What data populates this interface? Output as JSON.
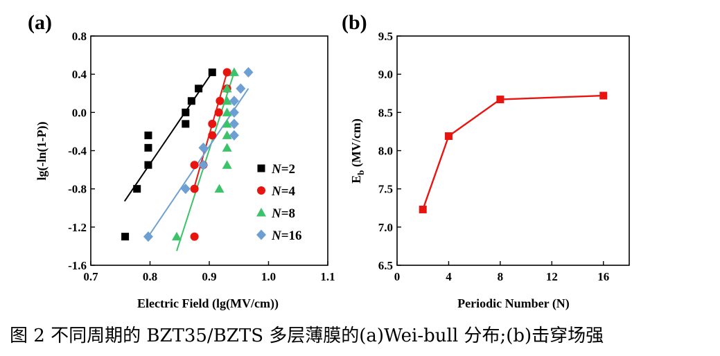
{
  "caption": "图 2 不同周期的 BZT35/BZTS 多层薄膜的(a)Wei-bull 分布;(b)击穿场强",
  "chart_data": [
    {
      "panel": "(a)",
      "type": "scatter",
      "xlabel": "Electric Field (lg(MV/cm))",
      "ylabel": "lg(-ln(1-P))",
      "xlim": [
        0.7,
        1.1
      ],
      "ylim": [
        -1.6,
        0.8
      ],
      "xticks": [
        "0.7",
        "0.8",
        "0.9",
        "1.0",
        "1.1"
      ],
      "yticks": [
        "-1.6",
        "-1.2",
        "-0.8",
        "-0.4",
        "0.0",
        "0.4",
        "0.8"
      ],
      "legend": "right-middle",
      "series": [
        {
          "name": "N=2",
          "name_italic": "N",
          "name_rest": "=2",
          "color": "#000000",
          "marker": "square",
          "points": [
            [
              0.758,
              -1.3
            ],
            [
              0.778,
              -0.8
            ],
            [
              0.797,
              -0.55
            ],
            [
              0.797,
              -0.37
            ],
            [
              0.797,
              -0.24
            ],
            [
              0.86,
              -0.12
            ],
            [
              0.86,
              0.0
            ],
            [
              0.87,
              0.12
            ],
            [
              0.882,
              0.25
            ],
            [
              0.905,
              0.42
            ]
          ],
          "fit": [
            [
              0.757,
              -0.93
            ],
            [
              0.905,
              0.42
            ]
          ]
        },
        {
          "name": "N=4",
          "name_italic": "N",
          "name_rest": "=4",
          "color": "#e8140f",
          "marker": "circle",
          "points": [
            [
              0.875,
              -1.3
            ],
            [
              0.875,
              -0.8
            ],
            [
              0.875,
              -0.55
            ],
            [
              0.89,
              -0.55
            ],
            [
              0.905,
              -0.24
            ],
            [
              0.905,
              -0.12
            ],
            [
              0.916,
              0.0
            ],
            [
              0.918,
              0.12
            ],
            [
              0.93,
              0.25
            ],
            [
              0.93,
              0.42
            ]
          ],
          "fit": [
            [
              0.873,
              -0.82
            ],
            [
              0.93,
              0.42
            ]
          ]
        },
        {
          "name": "N=8",
          "name_italic": "N",
          "name_rest": "=8",
          "color": "#3cc268",
          "marker": "triangle",
          "points": [
            [
              0.845,
              -1.3
            ],
            [
              0.917,
              -0.8
            ],
            [
              0.93,
              -0.55
            ],
            [
              0.93,
              -0.37
            ],
            [
              0.93,
              -0.24
            ],
            [
              0.93,
              -0.12
            ],
            [
              0.93,
              0.0
            ],
            [
              0.93,
              0.12
            ],
            [
              0.93,
              0.25
            ],
            [
              0.942,
              0.42
            ]
          ],
          "fit": [
            [
              0.845,
              -1.45
            ],
            [
              0.942,
              0.42
            ]
          ]
        },
        {
          "name": "N=16",
          "name_italic": "N",
          "name_rest": "=16",
          "color": "#6d9fd2",
          "marker": "diamond",
          "points": [
            [
              0.797,
              -1.3
            ],
            [
              0.86,
              -0.8
            ],
            [
              0.89,
              -0.55
            ],
            [
              0.89,
              -0.37
            ],
            [
              0.942,
              -0.24
            ],
            [
              0.942,
              -0.12
            ],
            [
              0.942,
              0.0
            ],
            [
              0.942,
              0.12
            ],
            [
              0.953,
              0.25
            ],
            [
              0.966,
              0.42
            ]
          ],
          "fit": [
            [
              0.797,
              -1.3
            ],
            [
              0.966,
              0.25
            ]
          ]
        }
      ]
    },
    {
      "panel": "(b)",
      "type": "line",
      "xlabel": "Periodic Number (N)",
      "ylabel_main": "E",
      "ylabel_sub": "b",
      "ylabel_rest": " (MV/cm)",
      "xlim": [
        0,
        18
      ],
      "ylim": [
        6.5,
        9.5
      ],
      "xticks": [
        "0",
        "4",
        "8",
        "12",
        "16"
      ],
      "yticks": [
        "6.5",
        "7.0",
        "7.5",
        "8.0",
        "8.5",
        "9.0",
        "9.5"
      ],
      "color": "#e8140f",
      "marker": "square",
      "x": [
        2,
        4,
        8,
        16
      ],
      "y": [
        7.23,
        8.19,
        8.67,
        8.72
      ]
    }
  ]
}
